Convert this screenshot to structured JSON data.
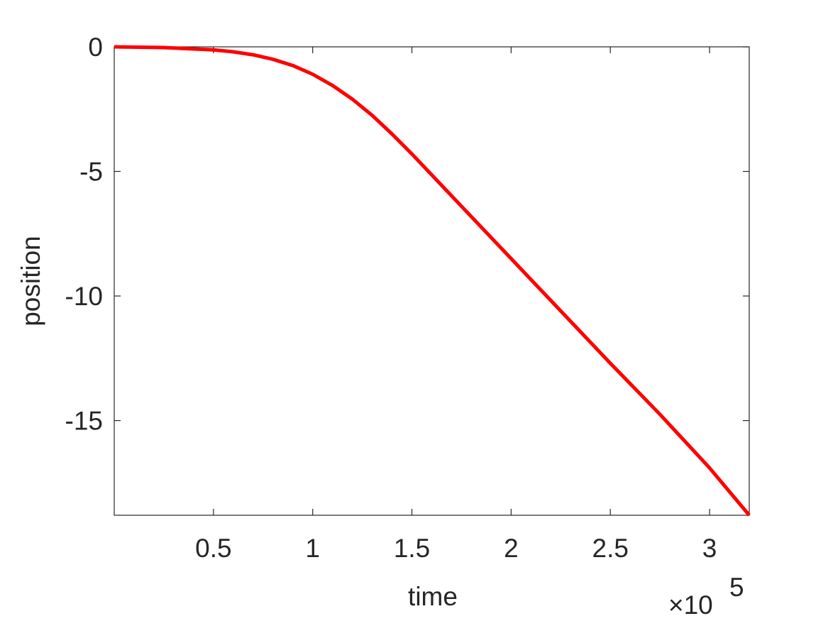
{
  "chart_data": {
    "type": "line",
    "xlabel": "time",
    "ylabel": "position",
    "x_multiplier": {
      "base": "×10",
      "exponent": "5"
    },
    "x": [
      0,
      0.25,
      0.5,
      0.6,
      0.7,
      0.8,
      0.9,
      1.0,
      1.1,
      1.2,
      1.3,
      1.4,
      1.5,
      1.75,
      2.0,
      2.25,
      2.5,
      2.75,
      3.0,
      3.2
    ],
    "series": [
      {
        "name": "position",
        "color": "#ff0000",
        "values": [
          0,
          -0.03,
          -0.12,
          -0.2,
          -0.32,
          -0.5,
          -0.75,
          -1.1,
          -1.55,
          -2.1,
          -2.75,
          -3.5,
          -4.3,
          -6.4,
          -8.5,
          -10.6,
          -12.7,
          -14.75,
          -16.9,
          -18.8
        ]
      }
    ],
    "xlim": [
      0,
      3.2
    ],
    "ylim": [
      -18.8,
      0
    ],
    "xticks": [
      0.5,
      1,
      1.5,
      2,
      2.5,
      3
    ],
    "yticks": [
      0,
      -5,
      -10,
      -15
    ],
    "grid": false
  }
}
